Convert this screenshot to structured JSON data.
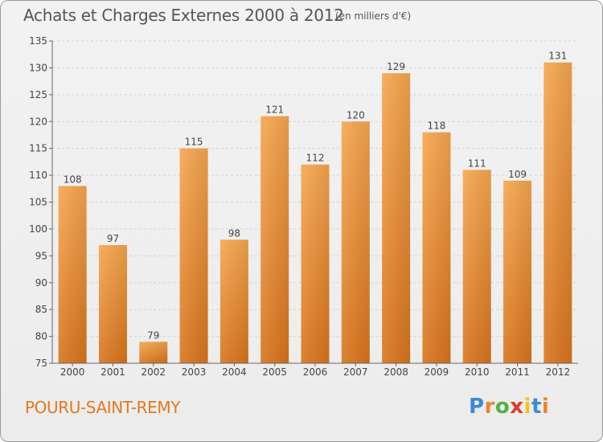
{
  "header": {
    "title": "Achats et Charges Externes 2000 à 2012",
    "subtitle": "(en milliers d'€)"
  },
  "footer": {
    "commune": "POURU-SAINT-REMY"
  },
  "logo": {
    "letters": [
      "P",
      "r",
      "o",
      "x",
      "i",
      "t",
      "i"
    ],
    "colors": [
      "#3b8ad9",
      "#e9852a",
      "#55b046",
      "#e0382d",
      "#f0c419",
      "#3b8ad9",
      "#e9852a"
    ]
  },
  "chart_data": {
    "type": "bar",
    "categories": [
      "2000",
      "2001",
      "2002",
      "2003",
      "2004",
      "2005",
      "2006",
      "2007",
      "2008",
      "2009",
      "2010",
      "2011",
      "2012"
    ],
    "values": [
      108,
      97,
      79,
      115,
      98,
      121,
      112,
      120,
      129,
      118,
      111,
      109,
      131
    ],
    "ylim": [
      75,
      135
    ],
    "yticks": [
      75,
      80,
      85,
      90,
      95,
      100,
      105,
      110,
      115,
      120,
      125,
      130,
      135
    ],
    "grid": true,
    "bar_color": "#f0a048"
  }
}
